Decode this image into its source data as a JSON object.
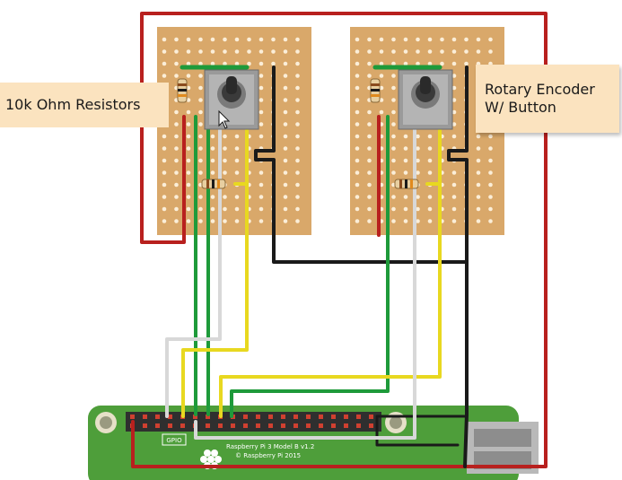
{
  "callouts": {
    "resistors": "10k Ohm Resistors",
    "encoder_line1": "Rotary Encoder",
    "encoder_line2": "W/ Button"
  },
  "board": {
    "gpio_label": "GPIO",
    "model_label": "Raspberry Pi 3 Model B v1.2",
    "copyright_label": "© Raspberry Pi 2015"
  },
  "colors": {
    "wire_red": "#b8201e",
    "wire_green": "#1e9a3a",
    "wire_yellow": "#e8d820",
    "wire_black": "#1a1a1a",
    "wire_white": "#d8d8d8",
    "stripboard": "#d9a86a",
    "pcb": "#4e9e3a"
  }
}
